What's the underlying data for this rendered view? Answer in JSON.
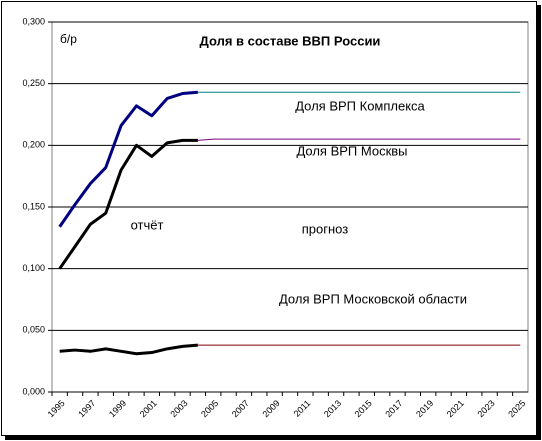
{
  "chart_data": {
    "type": "line",
    "title": "Доля в составе ВВП России",
    "y_label": "б/р",
    "categories": [
      "1995",
      null,
      "1997",
      null,
      "1999",
      null,
      "2001",
      null,
      "2003",
      null,
      "2005",
      null,
      "2007",
      null,
      "2009",
      null,
      "2011",
      null,
      "2013",
      null,
      "2015",
      null,
      "2017",
      null,
      "2019",
      null,
      "2021",
      null,
      "2023",
      null,
      "2025"
    ],
    "ylim": [
      0,
      0.3
    ],
    "yticks": [
      {
        "value": 0,
        "label": "0,000"
      },
      {
        "value": 0.05,
        "label": "0,050"
      },
      {
        "value": 0.1,
        "label": "0,100"
      },
      {
        "value": 0.15,
        "label": "0,150"
      },
      {
        "value": 0.2,
        "label": "0,200"
      },
      {
        "value": 0.25,
        "label": "0,250"
      },
      {
        "value": 0.3,
        "label": "0,300"
      }
    ],
    "grid": true,
    "series": [
      {
        "name": "Доля ВРП Комплекса",
        "color": "#000080",
        "forecast_color": "#008080",
        "values": [
          0.134,
          0.152,
          0.169,
          0.182,
          0.216,
          0.232,
          0.224,
          0.238,
          0.242,
          0.243,
          null,
          null,
          null,
          null,
          null,
          null,
          null,
          null,
          null,
          null,
          null,
          null,
          null,
          null,
          null,
          null,
          null,
          null,
          null,
          null,
          null
        ],
        "forecast": [
          null,
          null,
          null,
          null,
          null,
          null,
          null,
          null,
          null,
          0.243,
          0.243,
          0.243,
          0.243,
          0.243,
          0.243,
          0.243,
          0.243,
          0.243,
          0.243,
          0.243,
          0.243,
          0.243,
          0.243,
          0.243,
          0.243,
          0.243,
          0.243,
          0.243,
          0.243,
          0.243,
          0.243
        ]
      },
      {
        "name": "Доля ВРП Москвы",
        "color": "#000000",
        "forecast_color": "#800080",
        "values": [
          0.1,
          0.118,
          0.136,
          0.145,
          0.18,
          0.2,
          0.191,
          0.202,
          0.204,
          0.204,
          null,
          null,
          null,
          null,
          null,
          null,
          null,
          null,
          null,
          null,
          null,
          null,
          null,
          null,
          null,
          null,
          null,
          null,
          null,
          null,
          null
        ],
        "forecast": [
          null,
          null,
          null,
          null,
          null,
          null,
          null,
          null,
          null,
          0.204,
          0.205,
          0.205,
          0.205,
          0.205,
          0.205,
          0.205,
          0.205,
          0.205,
          0.205,
          0.205,
          0.205,
          0.205,
          0.205,
          0.205,
          0.205,
          0.205,
          0.205,
          0.205,
          0.205,
          0.205,
          0.205
        ]
      },
      {
        "name": "Доля ВРП Московской области",
        "color": "#000000",
        "forecast_color": "#800000",
        "values": [
          0.033,
          0.034,
          0.033,
          0.035,
          0.033,
          0.031,
          0.032,
          0.035,
          0.037,
          0.038,
          null,
          null,
          null,
          null,
          null,
          null,
          null,
          null,
          null,
          null,
          null,
          null,
          null,
          null,
          null,
          null,
          null,
          null,
          null,
          null,
          null
        ],
        "forecast": [
          null,
          null,
          null,
          null,
          null,
          null,
          null,
          null,
          null,
          0.038,
          0.038,
          0.038,
          0.038,
          0.038,
          0.038,
          0.038,
          0.038,
          0.038,
          0.038,
          0.038,
          0.038,
          0.038,
          0.038,
          0.038,
          0.038,
          0.038,
          0.038,
          0.038,
          0.038,
          0.038,
          0.038
        ]
      }
    ],
    "annotations": [
      "отчёт",
      "прогноз"
    ]
  }
}
